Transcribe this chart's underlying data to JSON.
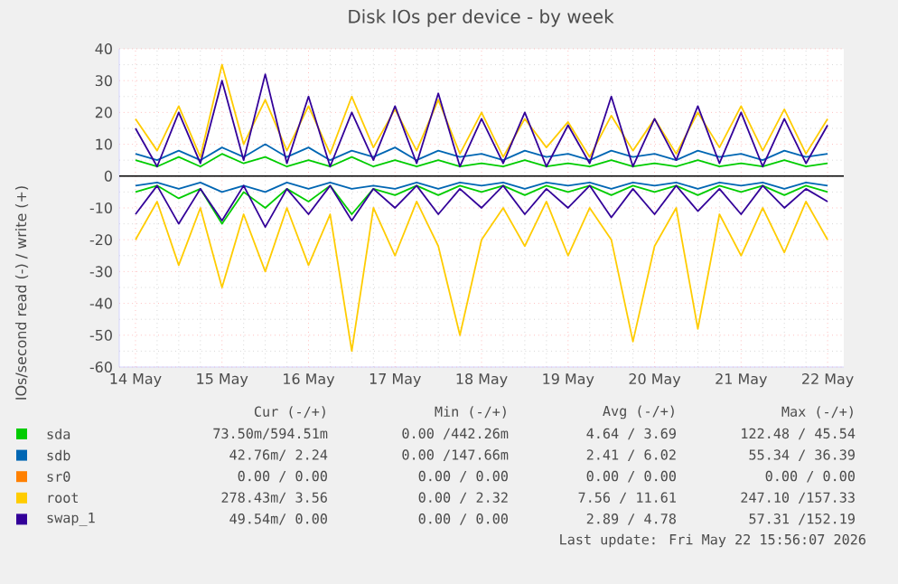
{
  "chart_data": {
    "type": "line",
    "title": "Disk IOs per device - by week",
    "ylabel": "IOs/second read (-) / write (+)",
    "x": [
      "2026-05-14T00:00",
      "2026-05-14T06:00",
      "2026-05-14T12:00",
      "2026-05-14T18:00",
      "2026-05-15T00:00",
      "2026-05-15T06:00",
      "2026-05-15T12:00",
      "2026-05-15T18:00",
      "2026-05-16T00:00",
      "2026-05-16T06:00",
      "2026-05-16T12:00",
      "2026-05-16T18:00",
      "2026-05-17T00:00",
      "2026-05-17T06:00",
      "2026-05-17T12:00",
      "2026-05-17T18:00",
      "2026-05-18T00:00",
      "2026-05-18T06:00",
      "2026-05-18T12:00",
      "2026-05-18T18:00",
      "2026-05-19T00:00",
      "2026-05-19T06:00",
      "2026-05-19T12:00",
      "2026-05-19T18:00",
      "2026-05-20T00:00",
      "2026-05-20T06:00",
      "2026-05-20T12:00",
      "2026-05-20T18:00",
      "2026-05-21T00:00",
      "2026-05-21T06:00",
      "2026-05-21T12:00",
      "2026-05-21T18:00",
      "2026-05-22T00:00"
    ],
    "series": [
      {
        "color": "#00cc00",
        "values": [
          -5,
          -3,
          -7,
          -4,
          -15,
          -5,
          -10,
          -4,
          -8,
          -3,
          -12,
          -4,
          -6,
          -3,
          -6,
          -3,
          -5,
          -3,
          -6,
          -3,
          -5,
          -3,
          -6,
          -3,
          -5,
          -3,
          -6,
          -3,
          -5,
          -3,
          -6,
          -3,
          -5
        ]
      },
      {
        "name": "sda",
        "color": "#00cc00",
        "values": [
          5,
          3,
          6,
          3,
          7,
          4,
          6,
          3,
          5,
          3,
          6,
          3,
          5,
          3,
          5,
          3,
          4,
          3,
          5,
          3,
          4,
          3,
          5,
          3,
          4,
          3,
          5,
          3,
          4,
          3,
          5,
          3,
          4
        ]
      },
      {
        "color": "#0066b3",
        "values": [
          -3,
          -2,
          -4,
          -2,
          -5,
          -3,
          -5,
          -2,
          -4,
          -2,
          -4,
          -3,
          -4,
          -2,
          -4,
          -2,
          -3,
          -2,
          -4,
          -2,
          -3,
          -2,
          -4,
          -2,
          -3,
          -2,
          -4,
          -2,
          -3,
          -2,
          -4,
          -2,
          -3
        ]
      },
      {
        "name": "sdb",
        "color": "#0066b3",
        "values": [
          7,
          5,
          8,
          5,
          9,
          6,
          10,
          6,
          9,
          5,
          8,
          6,
          9,
          5,
          8,
          6,
          7,
          5,
          8,
          6,
          7,
          5,
          8,
          6,
          7,
          5,
          8,
          6,
          7,
          5,
          8,
          6,
          7
        ]
      },
      {
        "name": "sr0",
        "color": "#ff8000",
        "values": [
          null,
          null,
          null,
          null,
          null,
          null,
          null,
          null,
          null,
          null,
          null,
          null,
          null,
          null,
          null,
          null,
          null,
          null,
          null,
          null,
          null,
          null,
          null,
          null,
          null,
          null,
          null,
          null,
          null,
          null,
          null,
          null,
          null
        ]
      },
      {
        "color": "#ffcc00",
        "values": [
          -20,
          -8,
          -28,
          -10,
          -35,
          -12,
          -30,
          -10,
          -28,
          -12,
          -55,
          -10,
          -25,
          -8,
          -22,
          -50,
          -20,
          -10,
          -22,
          -8,
          -25,
          -10,
          -20,
          -52,
          -22,
          -10,
          -48,
          -12,
          -25,
          -10,
          -24,
          -8,
          -20
        ]
      },
      {
        "name": "root",
        "color": "#ffcc00",
        "values": [
          18,
          8,
          22,
          6,
          35,
          10,
          24,
          8,
          22,
          7,
          25,
          9,
          21,
          8,
          24,
          7,
          20,
          6,
          18,
          9,
          17,
          6,
          19,
          8,
          18,
          7,
          20,
          9,
          22,
          8,
          21,
          7,
          18
        ]
      },
      {
        "color": "#330099",
        "values": [
          -12,
          -3,
          -15,
          -4,
          -14,
          -3,
          -16,
          -4,
          -12,
          -3,
          -14,
          -4,
          -10,
          -3,
          -12,
          -4,
          -10,
          -3,
          -12,
          -4,
          -10,
          -3,
          -13,
          -4,
          -12,
          -3,
          -11,
          -4,
          -12,
          -3,
          -10,
          -4,
          -8
        ]
      },
      {
        "name": "swap_1",
        "color": "#330099",
        "values": [
          15,
          3,
          20,
          4,
          30,
          5,
          32,
          4,
          25,
          3,
          20,
          5,
          22,
          4,
          26,
          3,
          18,
          4,
          20,
          3,
          16,
          4,
          25,
          3,
          18,
          5,
          22,
          4,
          20,
          3,
          18,
          4,
          16
        ]
      }
    ],
    "xlim": [
      "2026-05-13T19:30",
      "2026-05-22T04:30"
    ],
    "xticks": [
      {
        "value": "2026-05-14",
        "label": "14 May"
      },
      {
        "value": "2026-05-15",
        "label": "15 May"
      },
      {
        "value": "2026-05-16",
        "label": "16 May"
      },
      {
        "value": "2026-05-17",
        "label": "17 May"
      },
      {
        "value": "2026-05-18",
        "label": "18 May"
      },
      {
        "value": "2026-05-19",
        "label": "19 May"
      },
      {
        "value": "2026-05-20",
        "label": "20 May"
      },
      {
        "value": "2026-05-21",
        "label": "21 May"
      },
      {
        "value": "2026-05-22",
        "label": "22 May"
      }
    ],
    "ylim": [
      -60,
      40
    ],
    "yticks": [
      -60,
      -50,
      -40,
      -30,
      -20,
      -10,
      0,
      10,
      20,
      30,
      40
    ],
    "grid": true,
    "legend": "bottom",
    "marker": "none",
    "ref_lines": [
      {
        "axis": "y",
        "value": 0,
        "color": "#000000"
      }
    ],
    "annotations": [
      "Cur (-/+)",
      "Min (-/+)",
      "Avg (-/+)",
      "Max (-/+)",
      "73.50m/594.51m",
      "0.00 /442.26m",
      "4.64 /  3.69",
      "122.48 / 45.54",
      "42.76m/  2.24",
      "0.00 /147.66m",
      "2.41 /  6.02",
      "55.34 / 36.39",
      "0.00 /  0.00",
      "0.00 /  0.00",
      "0.00 /  0.00",
      "0.00 /  0.00",
      "278.43m/  3.56",
      "0.00 /  2.32",
      "7.56 / 11.61",
      "247.10 /157.33",
      "49.54m/  0.00",
      "0.00 /  0.00",
      "2.89 /  4.78",
      "57.31 /152.19",
      "Last update: Fri May 22 15:56:07 2026"
    ]
  }
}
